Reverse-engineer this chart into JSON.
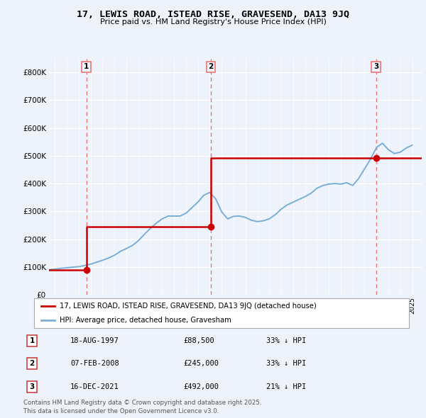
{
  "title": "17, LEWIS ROAD, ISTEAD RISE, GRAVESEND, DA13 9JQ",
  "subtitle": "Price paid vs. HM Land Registry's House Price Index (HPI)",
  "bg_color": "#eef3fb",
  "plot_bg_color": "#eef3fb",
  "y_ticks": [
    0,
    100000,
    200000,
    300000,
    400000,
    500000,
    600000,
    700000,
    800000
  ],
  "y_tick_labels": [
    "£0",
    "£100K",
    "£200K",
    "£300K",
    "£400K",
    "£500K",
    "£600K",
    "£700K",
    "£800K"
  ],
  "ylim": [
    0,
    850000
  ],
  "xlim_start": 1994.5,
  "xlim_end": 2025.8,
  "sale_color": "#cc0000",
  "hpi_color": "#7aaed6",
  "vline_color": "#e87878",
  "marker_color": "#cc0000",
  "sale_dates": [
    1997.63,
    2008.1,
    2021.96
  ],
  "sale_prices": [
    88500,
    245000,
    492000
  ],
  "sale_labels": [
    "1",
    "2",
    "3"
  ],
  "legend_sale_label": "17, LEWIS ROAD, ISTEAD RISE, GRAVESEND, DA13 9JQ (detached house)",
  "legend_hpi_label": "HPI: Average price, detached house, Gravesham",
  "table_rows": [
    {
      "num": "1",
      "date": "18-AUG-1997",
      "price": "£88,500",
      "pct": "33% ↓ HPI"
    },
    {
      "num": "2",
      "date": "07-FEB-2008",
      "price": "£245,000",
      "pct": "33% ↓ HPI"
    },
    {
      "num": "3",
      "date": "16-DEC-2021",
      "price": "£492,000",
      "pct": "21% ↓ HPI"
    }
  ],
  "footnote": "Contains HM Land Registry data © Crown copyright and database right 2025.\nThis data is licensed under the Open Government Licence v3.0.",
  "hpi_x": [
    1994.5,
    1995.0,
    1995.5,
    1996.0,
    1996.5,
    1997.0,
    1997.5,
    1998.0,
    1998.5,
    1999.0,
    1999.5,
    2000.0,
    2000.5,
    2001.0,
    2001.5,
    2002.0,
    2002.5,
    2003.0,
    2003.5,
    2004.0,
    2004.5,
    2005.0,
    2005.5,
    2006.0,
    2006.5,
    2007.0,
    2007.5,
    2008.0,
    2008.5,
    2009.0,
    2009.5,
    2010.0,
    2010.5,
    2011.0,
    2011.5,
    2012.0,
    2012.5,
    2013.0,
    2013.5,
    2014.0,
    2014.5,
    2015.0,
    2015.5,
    2016.0,
    2016.5,
    2017.0,
    2017.5,
    2018.0,
    2018.5,
    2019.0,
    2019.5,
    2020.0,
    2020.5,
    2021.0,
    2021.5,
    2022.0,
    2022.5,
    2023.0,
    2023.5,
    2024.0,
    2024.5,
    2025.0
  ],
  "hpi_y": [
    90000,
    92000,
    95000,
    97000,
    99000,
    101000,
    105000,
    110000,
    117000,
    124000,
    132000,
    142000,
    156000,
    166000,
    177000,
    194000,
    217000,
    238000,
    257000,
    273000,
    283000,
    283000,
    283000,
    293000,
    313000,
    333000,
    358000,
    368000,
    345000,
    298000,
    273000,
    282000,
    283000,
    278000,
    268000,
    263000,
    266000,
    273000,
    288000,
    308000,
    323000,
    333000,
    343000,
    353000,
    365000,
    383000,
    393000,
    398000,
    400000,
    398000,
    403000,
    393000,
    418000,
    453000,
    488000,
    530000,
    545000,
    522000,
    508000,
    513000,
    528000,
    538000
  ],
  "sale_line_start_x": 1994.5,
  "sale_line_end_x": 2025.8
}
